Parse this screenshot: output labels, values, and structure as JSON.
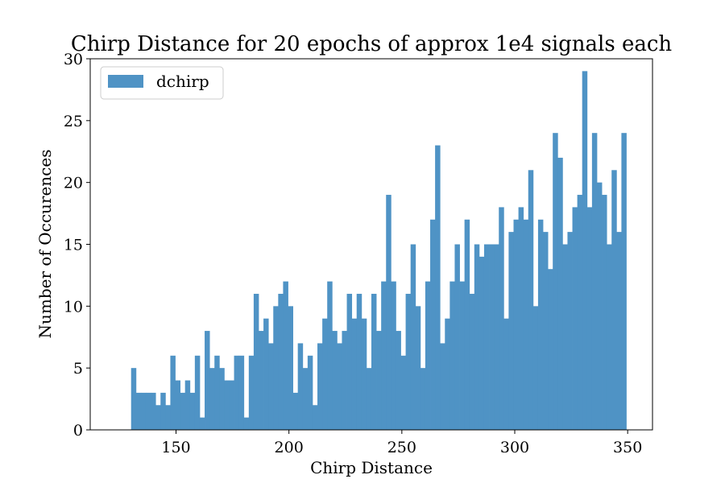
{
  "chart_data": {
    "type": "bar",
    "title": "Chirp Distance for 20 epochs of approx 1e4 signals each",
    "xlabel": "Chirp Distance",
    "ylabel": "Number of Occurences",
    "xlim": [
      112,
      361
    ],
    "ylim": [
      0,
      30
    ],
    "x_ticks": [
      150,
      200,
      250,
      300,
      350
    ],
    "y_ticks": [
      0,
      5,
      10,
      15,
      20,
      25,
      30
    ],
    "grid": false,
    "legend_position": "top-left",
    "bin_start": 130.1,
    "bin_end": 349.4,
    "series": [
      {
        "name": "dchirp",
        "color": "#4f93c5",
        "values": [
          5,
          3,
          3,
          3,
          3,
          2,
          3,
          2,
          6,
          4,
          3,
          4,
          3,
          6,
          1,
          8,
          5,
          6,
          5,
          4,
          4,
          6,
          6,
          1,
          6,
          11,
          8,
          9,
          7,
          10,
          11,
          12,
          10,
          3,
          7,
          5,
          6,
          2,
          7,
          9,
          12,
          8,
          7,
          8,
          11,
          9,
          11,
          9,
          5,
          11,
          8,
          12,
          19,
          12,
          8,
          6,
          11,
          15,
          10,
          5,
          12,
          17,
          23,
          7,
          9,
          12,
          15,
          12,
          17,
          11,
          15,
          14,
          15,
          15,
          15,
          18,
          9,
          16,
          17,
          18,
          17,
          21,
          10,
          17,
          16,
          13,
          24,
          22,
          15,
          16,
          18,
          19,
          29,
          18,
          24,
          20,
          19,
          15,
          21,
          16,
          24
        ]
      }
    ]
  }
}
